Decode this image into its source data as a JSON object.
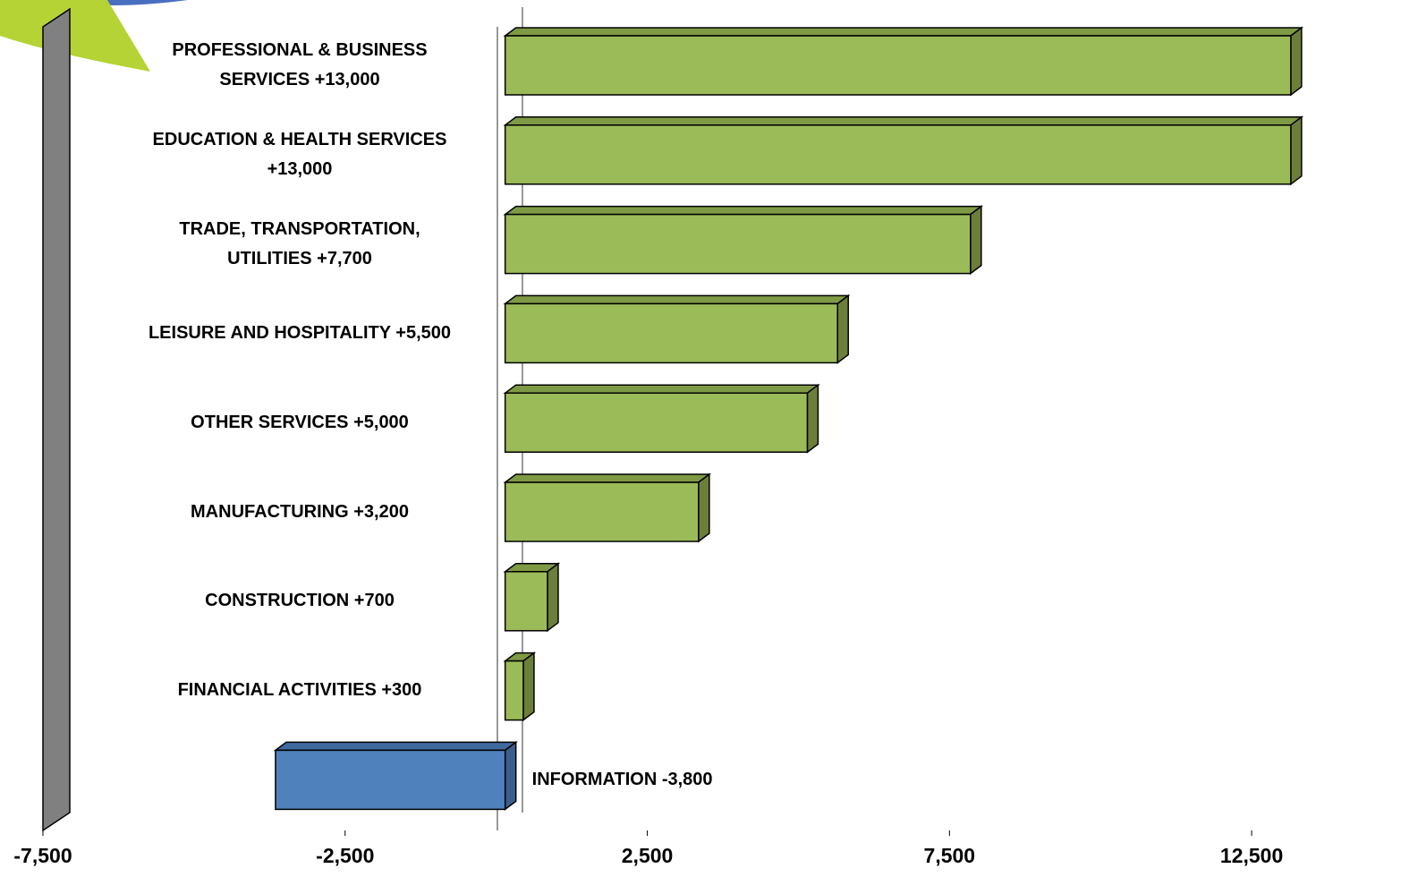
{
  "chart_data": {
    "type": "bar",
    "orientation": "horizontal",
    "categories": [
      "PROFESSIONAL & BUSINESS SERVICES",
      "EDUCATION & HEALTH SERVICES",
      "TRADE, TRANSPORTATION, UTILITIES",
      "LEISURE AND HOSPITALITY",
      "OTHER SERVICES",
      "MANUFACTURING",
      "CONSTRUCTION",
      "FINANCIAL ACTIVITIES",
      "INFORMATION"
    ],
    "values": [
      13000,
      13000,
      7700,
      5500,
      5000,
      3200,
      700,
      300,
      -3800
    ],
    "value_labels": [
      "+13,000",
      "+13,000",
      "+7,700",
      "+5,500",
      "+5,000",
      "+3,200",
      "+700",
      "+300",
      "-3,800"
    ],
    "positive_color": "#9bbb59",
    "negative_color": "#4f81bd",
    "xlim": [
      -7500,
      15000
    ],
    "xticks": [
      {
        "value": -7500,
        "label": "-7,500"
      },
      {
        "value": -2500,
        "label": "-2,500"
      },
      {
        "value": 2500,
        "label": "2,500"
      },
      {
        "value": 7500,
        "label": "7,500"
      },
      {
        "value": 12500,
        "label": "12,500"
      }
    ]
  }
}
